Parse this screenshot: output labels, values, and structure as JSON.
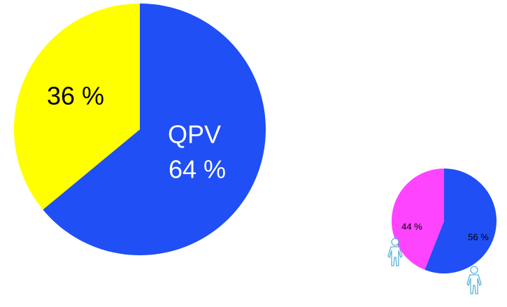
{
  "chart_data": [
    {
      "type": "pie",
      "categories": [
        "QPV",
        null
      ],
      "values": [
        64,
        36
      ],
      "value_labels": [
        "64 %",
        "36 %"
      ],
      "colors": [
        "#1f4ff5",
        "#ffff00"
      ]
    },
    {
      "type": "pie",
      "values": [
        56,
        44
      ],
      "value_labels": [
        "56 %",
        "44 %"
      ],
      "colors": [
        "#1f4ff5",
        "#ff44ff"
      ]
    }
  ]
}
